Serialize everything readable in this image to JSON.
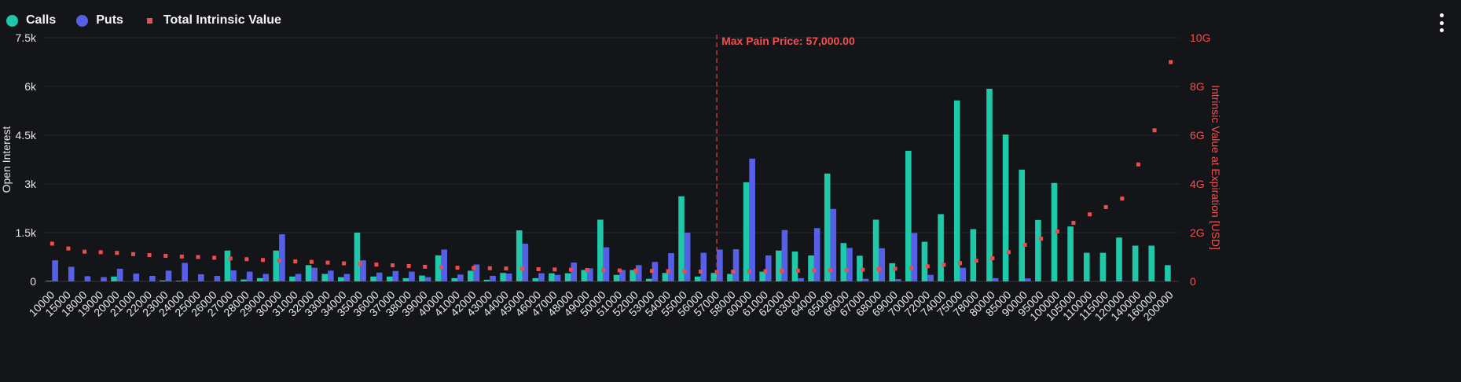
{
  "legend": {
    "calls_label": "Calls",
    "puts_label": "Puts",
    "tiv_label": "Total Intrinsic Value"
  },
  "colors": {
    "calls": "#1fc8a8",
    "puts": "#5560e6",
    "tiv": "#ee4d4d",
    "grid": "#26282c",
    "background": "#141518",
    "max_pain_line": "#c8434a"
  },
  "chart_data": {
    "type": "bar",
    "categories": [
      "10000",
      "15000",
      "18000",
      "19000",
      "20000",
      "21000",
      "22000",
      "23000",
      "24000",
      "25000",
      "26000",
      "27000",
      "28000",
      "29000",
      "30000",
      "31000",
      "32000",
      "33000",
      "34000",
      "35000",
      "36000",
      "37000",
      "38000",
      "39000",
      "40000",
      "41000",
      "42000",
      "43000",
      "44000",
      "45000",
      "46000",
      "47000",
      "48000",
      "49000",
      "50000",
      "51000",
      "52000",
      "53000",
      "54000",
      "55000",
      "56000",
      "57000",
      "58000",
      "60000",
      "61000",
      "62000",
      "63000",
      "64000",
      "65000",
      "66000",
      "67000",
      "68000",
      "69000",
      "70000",
      "72000",
      "74000",
      "75000",
      "78000",
      "80000",
      "85000",
      "90000",
      "95000",
      "100000",
      "105000",
      "110000",
      "115000",
      "120000",
      "140000",
      "160000",
      "200000"
    ],
    "series": [
      {
        "name": "Calls",
        "axis": "left",
        "values": [
          20,
          0,
          0,
          0,
          150,
          0,
          0,
          30,
          20,
          0,
          0,
          950,
          60,
          100,
          950,
          150,
          500,
          230,
          130,
          1500,
          150,
          150,
          100,
          180,
          800,
          100,
          330,
          50,
          260,
          1570,
          100,
          250,
          250,
          350,
          1900,
          200,
          350,
          80,
          260,
          2620,
          150,
          260,
          230,
          3050,
          300,
          950,
          920,
          800,
          3320,
          1180,
          790,
          1900,
          560,
          4020,
          1220,
          2070,
          5570,
          1610,
          5930,
          4520,
          3440,
          1890,
          3030,
          1690,
          880,
          880,
          1350,
          1100,
          1100,
          500
        ]
      },
      {
        "name": "Puts",
        "axis": "left",
        "values": [
          650,
          450,
          160,
          130,
          390,
          240,
          170,
          330,
          570,
          220,
          170,
          340,
          300,
          230,
          1450,
          230,
          420,
          330,
          230,
          650,
          270,
          320,
          300,
          130,
          980,
          210,
          520,
          170,
          240,
          1160,
          250,
          200,
          580,
          400,
          1050,
          350,
          500,
          600,
          870,
          1500,
          880,
          980,
          990,
          3780,
          800,
          1580,
          100,
          1640,
          2230,
          1030,
          80,
          1020,
          70,
          1490,
          200,
          0,
          420,
          0,
          100,
          0,
          90,
          0,
          0,
          0,
          0,
          0,
          0,
          0,
          0,
          0
        ]
      },
      {
        "name": "Total Intrinsic Value",
        "axis": "right",
        "values": [
          1.55,
          1.35,
          1.22,
          1.2,
          1.17,
          1.12,
          1.08,
          1.05,
          1.02,
          1.0,
          0.97,
          0.94,
          0.91,
          0.88,
          0.86,
          0.82,
          0.8,
          0.77,
          0.74,
          0.72,
          0.69,
          0.66,
          0.63,
          0.6,
          0.58,
          0.56,
          0.55,
          0.54,
          0.53,
          0.52,
          0.5,
          0.49,
          0.48,
          0.47,
          0.46,
          0.45,
          0.44,
          0.43,
          0.42,
          0.41,
          0.4,
          0.39,
          0.4,
          0.41,
          0.42,
          0.43,
          0.44,
          0.45,
          0.46,
          0.47,
          0.48,
          0.5,
          0.52,
          0.55,
          0.62,
          0.68,
          0.75,
          0.85,
          0.95,
          1.2,
          1.5,
          1.75,
          2.05,
          2.4,
          2.75,
          3.05,
          3.4,
          4.8,
          6.2,
          9.0
        ]
      }
    ],
    "y_left": {
      "label": "Open Interest",
      "ylim": [
        0,
        7500
      ],
      "ticks": [
        0,
        1500,
        3000,
        4500,
        6000,
        7500
      ],
      "tick_labels": [
        "0",
        "1.5k",
        "3k",
        "4.5k",
        "6k",
        "7.5k"
      ]
    },
    "y_right": {
      "label": "Intrinsic Value at Expiration [USD]",
      "ylim": [
        0,
        10
      ],
      "unit": "G",
      "ticks": [
        0,
        2,
        4,
        6,
        8,
        10
      ],
      "tick_labels": [
        "0",
        "2G",
        "4G",
        "6G",
        "8G",
        "10G"
      ]
    },
    "max_pain": {
      "strike": "57000",
      "label": "Max Pain Price: 57,000.00"
    },
    "grid": true,
    "legend_position": "top-left"
  }
}
